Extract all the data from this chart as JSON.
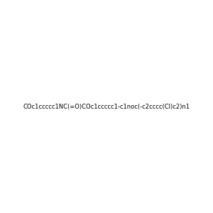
{
  "smiles": "COc1ccccc1NC(=O)COc1ccccc1-c1noc(-c2cccc(Cl)c2)n1",
  "image_size": 300,
  "background_color": "#f0f0f0",
  "title": ""
}
